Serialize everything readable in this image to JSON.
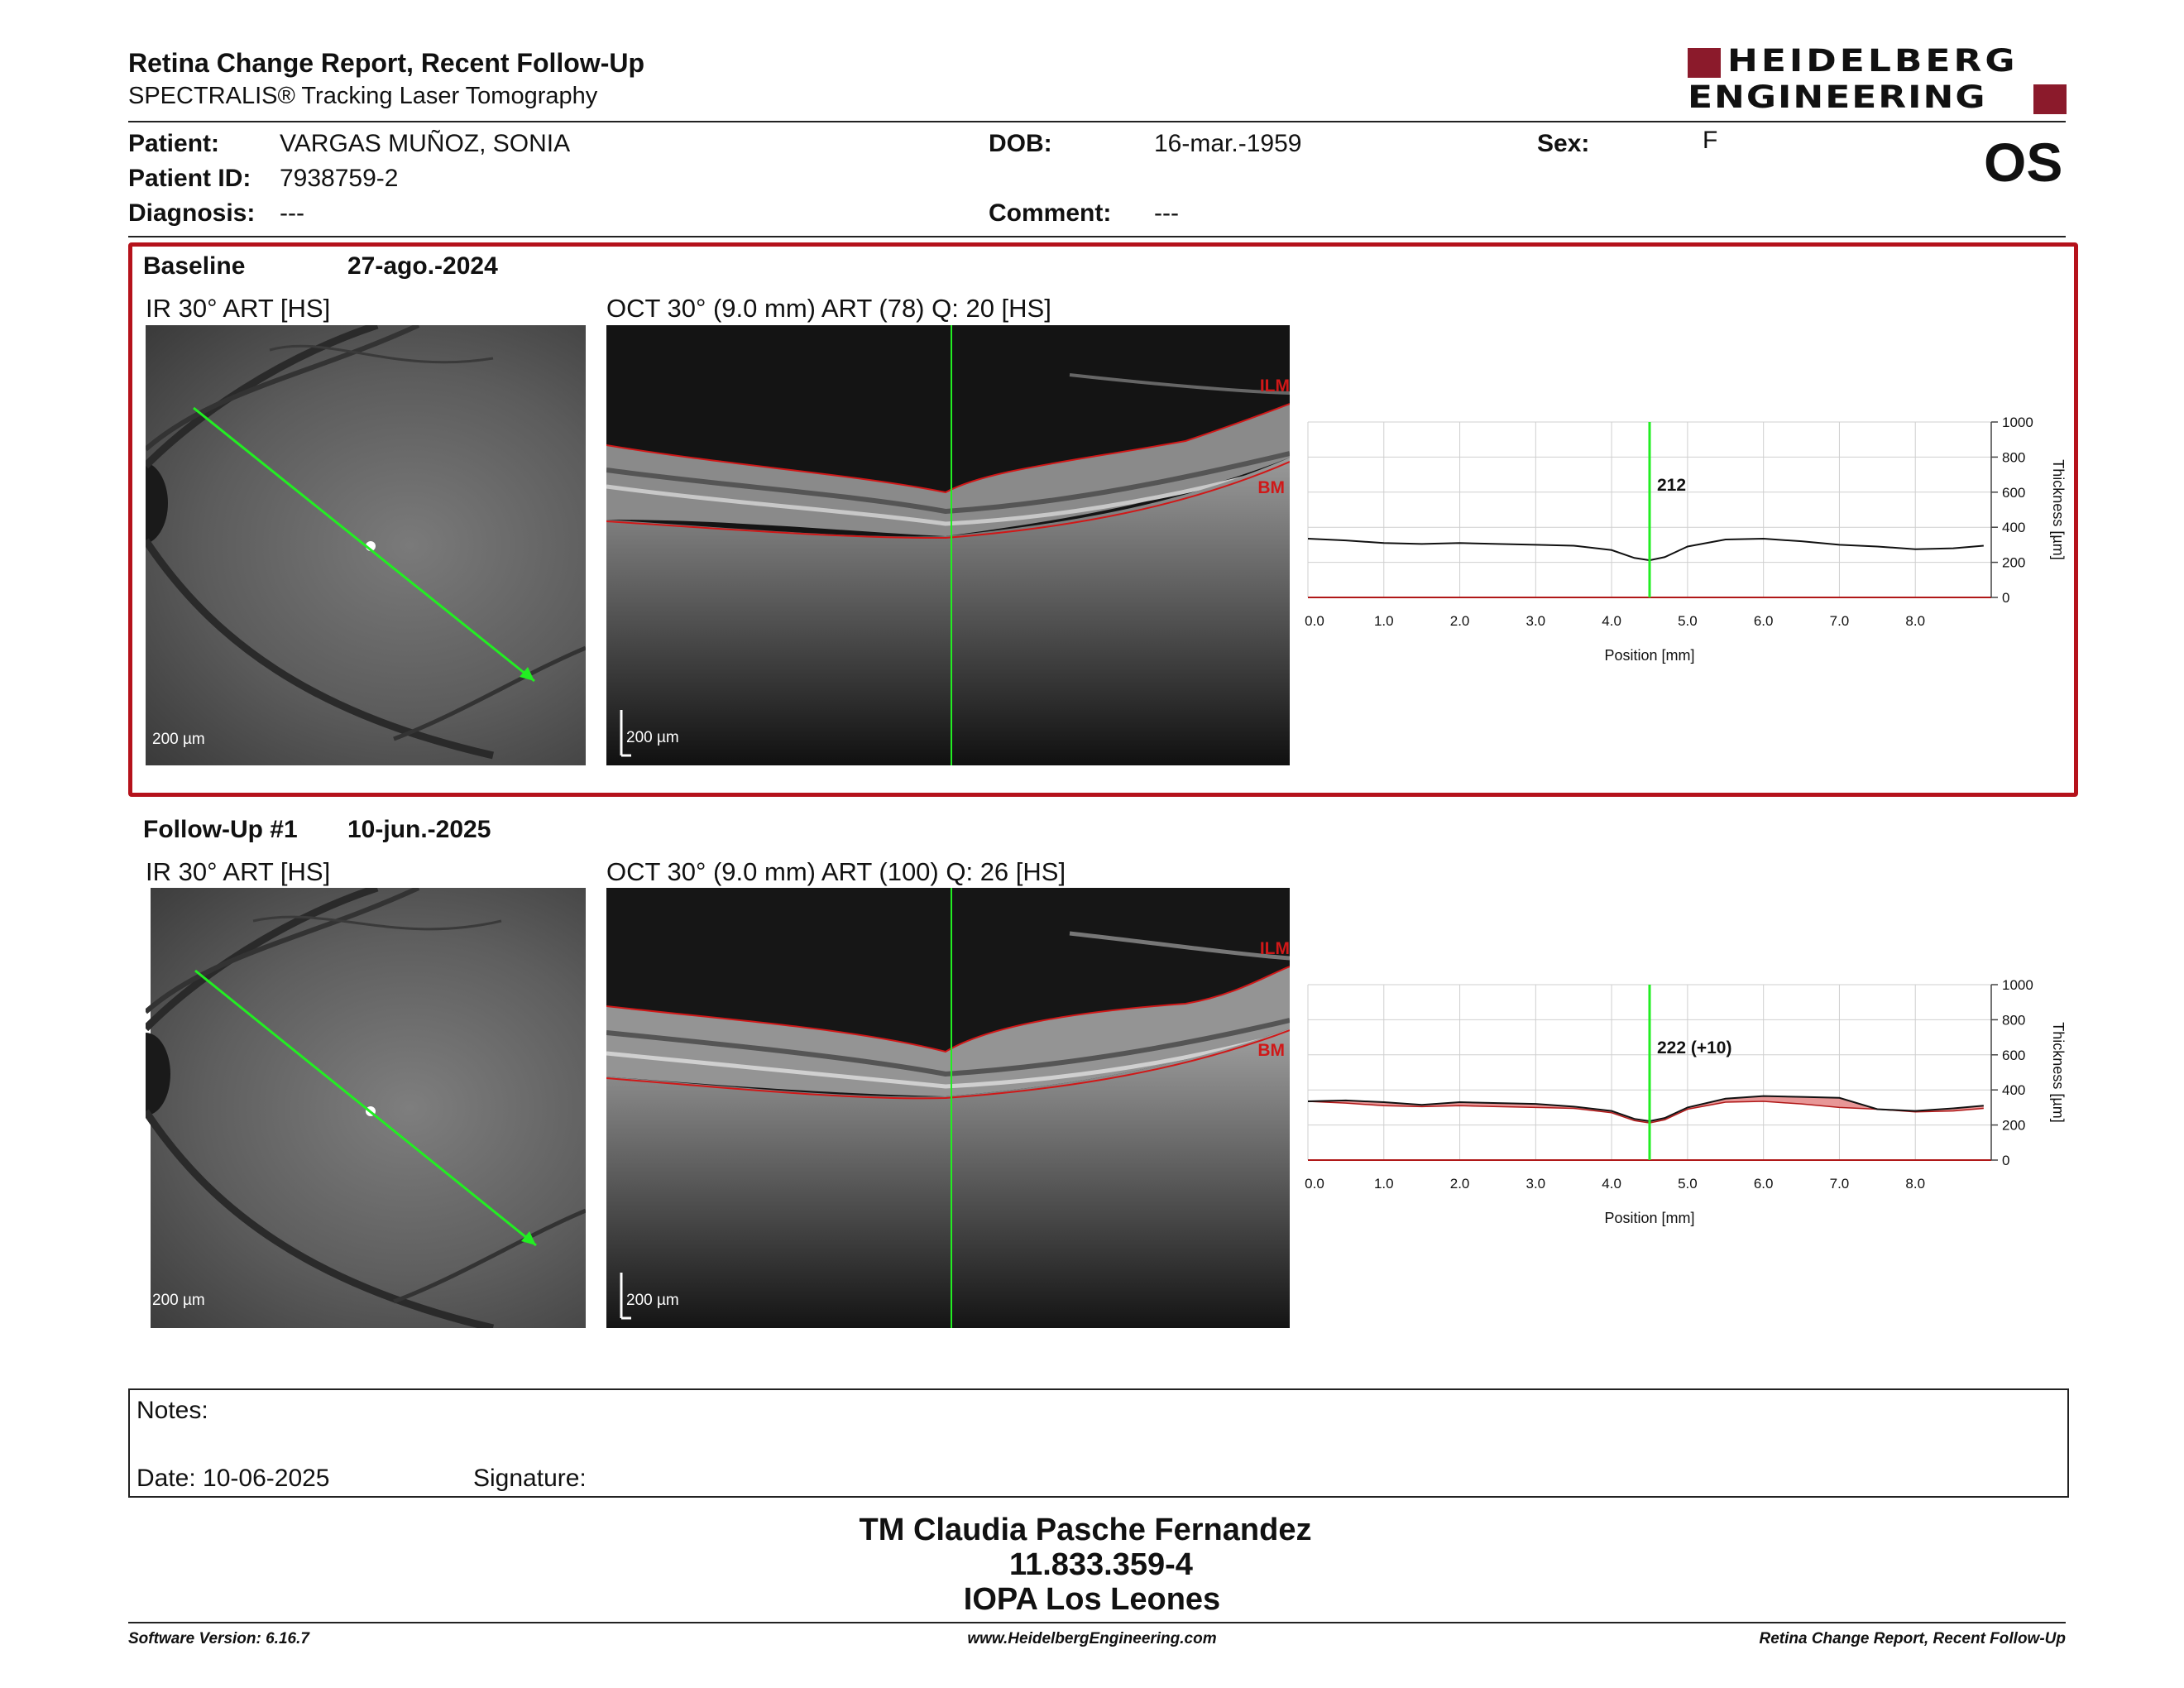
{
  "header": {
    "title": "Retina Change Report, Recent Follow-Up",
    "subtitle": "SPECTRALIS® Tracking Laser Tomography",
    "logo_line1": "HEIDELBERG",
    "logo_line2": "ENGINEERING",
    "eye": "OS"
  },
  "patient": {
    "patient_label": "Patient:",
    "patient_value": "VARGAS MUÑOZ, SONIA",
    "id_label": "Patient ID:",
    "id_value": "7938759-2",
    "diagnosis_label": "Diagnosis:",
    "diagnosis_value": "---",
    "dob_label": "DOB:",
    "dob_value": "16-mar.-1959",
    "comment_label": "Comment:",
    "comment_value": "---",
    "sex_label": "Sex:",
    "sex_value": "F"
  },
  "baseline": {
    "label": "Baseline",
    "date": "27-ago.-2024",
    "ir_title": "IR 30° ART [HS]",
    "oct_title": "OCT 30° (9.0 mm) ART (78) Q: 20 [HS]",
    "scale_ir": "200 µm",
    "scale_oct": "200 µm",
    "ilm": "ILM",
    "bm": "BM",
    "thickness_value": "212"
  },
  "followup": {
    "label": "Follow-Up #1",
    "date": "10-jun.-2025",
    "ir_title": "IR 30° ART [HS]",
    "oct_title": "OCT 30° (9.0 mm) ART (100) Q: 26 [HS]",
    "scale_ir": "200 µm",
    "scale_oct": "200 µm",
    "ilm": "ILM",
    "bm": "BM",
    "thickness_value": "222 (+10)"
  },
  "chart_data": [
    {
      "type": "line",
      "xlabel": "Position [mm]",
      "ylabel": "Thickness [µm]",
      "xlim": [
        0,
        9
      ],
      "ylim": [
        0,
        1000
      ],
      "x_ticks": [
        "0.0",
        "1.0",
        "2.0",
        "3.0",
        "4.0",
        "5.0",
        "6.0",
        "7.0",
        "8.0"
      ],
      "y_ticks": [
        "0",
        "200",
        "400",
        "600",
        "800",
        "1000"
      ],
      "marker_x": 4.5,
      "grid": true,
      "x": [
        0.0,
        0.5,
        1.0,
        1.5,
        2.0,
        2.5,
        3.0,
        3.5,
        4.0,
        4.3,
        4.5,
        4.7,
        5.0,
        5.5,
        6.0,
        6.5,
        7.0,
        7.5,
        8.0,
        8.5,
        8.9
      ],
      "values": [
        335,
        325,
        310,
        305,
        310,
        305,
        300,
        295,
        270,
        225,
        212,
        230,
        290,
        330,
        335,
        320,
        300,
        290,
        275,
        280,
        295
      ]
    },
    {
      "type": "line",
      "xlabel": "Position [mm]",
      "ylabel": "Thickness [µm]",
      "xlim": [
        0,
        9
      ],
      "ylim": [
        0,
        1000
      ],
      "x_ticks": [
        "0.0",
        "1.0",
        "2.0",
        "3.0",
        "4.0",
        "5.0",
        "6.0",
        "7.0",
        "8.0"
      ],
      "y_ticks": [
        "0",
        "200",
        "400",
        "600",
        "800",
        "1000"
      ],
      "marker_x": 4.5,
      "grid": true,
      "x": [
        0.0,
        0.5,
        1.0,
        1.5,
        2.0,
        2.5,
        3.0,
        3.5,
        4.0,
        4.3,
        4.5,
        4.7,
        5.0,
        5.5,
        6.0,
        6.5,
        7.0,
        7.5,
        8.0,
        8.5,
        8.9
      ],
      "values": [
        335,
        340,
        330,
        315,
        330,
        325,
        320,
        305,
        280,
        235,
        222,
        240,
        300,
        350,
        365,
        360,
        355,
        290,
        280,
        295,
        310
      ],
      "baseline": [
        335,
        325,
        310,
        305,
        310,
        305,
        300,
        295,
        270,
        225,
        212,
        230,
        290,
        330,
        335,
        320,
        300,
        290,
        275,
        280,
        295
      ]
    }
  ],
  "notes": {
    "label": "Notes:",
    "date_label": "Date: 10-06-2025",
    "signature_label": "Signature:"
  },
  "stamp": {
    "line1": "TM Claudia Pasche Fernandez",
    "line2": "11.833.359-4",
    "line3": "IOPA Los Leones"
  },
  "footer": {
    "software": "Software Version: 6.16.7",
    "website": "www.HeidelbergEngineering.com",
    "report": "Retina Change Report, Recent Follow-Up"
  }
}
